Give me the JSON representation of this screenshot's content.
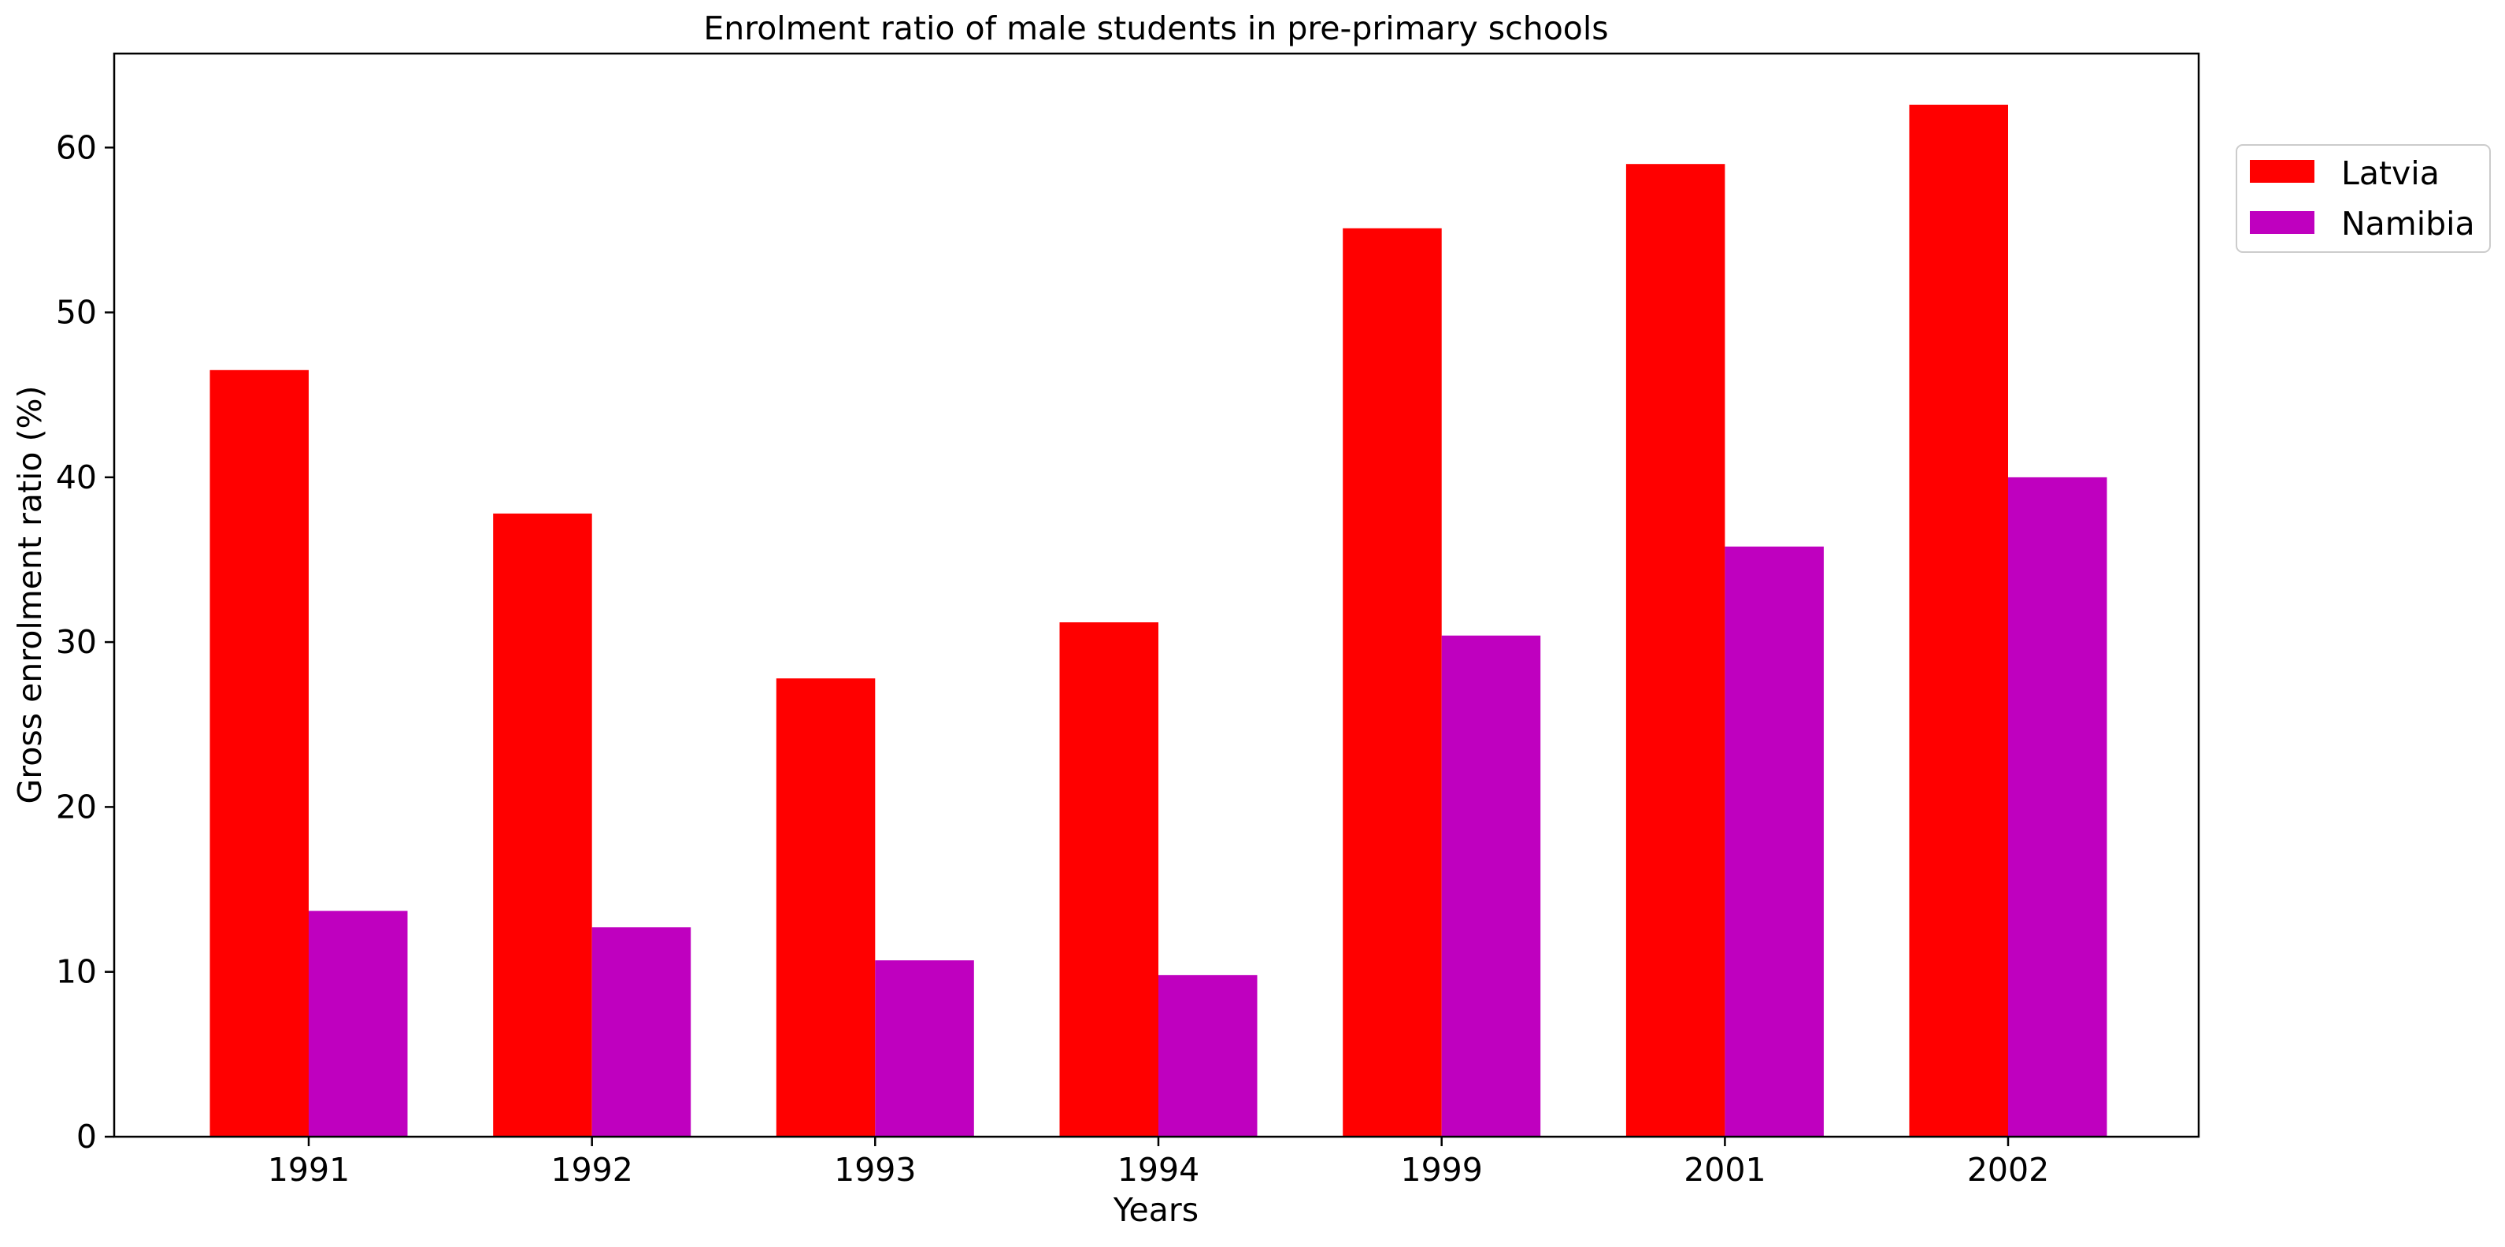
{
  "chart_data": {
    "type": "bar",
    "title": "Enrolment ratio of male students in pre-primary schools",
    "xlabel": "Years",
    "ylabel": "Gross enrolment ratio (%)",
    "categories": [
      "1991",
      "1992",
      "1993",
      "1994",
      "1999",
      "2001",
      "2002"
    ],
    "series": [
      {
        "name": "Latvia",
        "color": "#ff0000",
        "values": [
          46.5,
          37.8,
          27.8,
          31.2,
          55.1,
          59.0,
          62.6
        ]
      },
      {
        "name": "Namibia",
        "color": "#bf00bf",
        "values": [
          13.7,
          12.7,
          10.7,
          9.8,
          30.4,
          35.8,
          40.0
        ]
      }
    ],
    "ylim": [
      0,
      65.7
    ],
    "yticks": [
      "0",
      "10",
      "20",
      "30",
      "40",
      "50",
      "60"
    ],
    "legend_position": "upper right, outside plot",
    "grid": false
  }
}
